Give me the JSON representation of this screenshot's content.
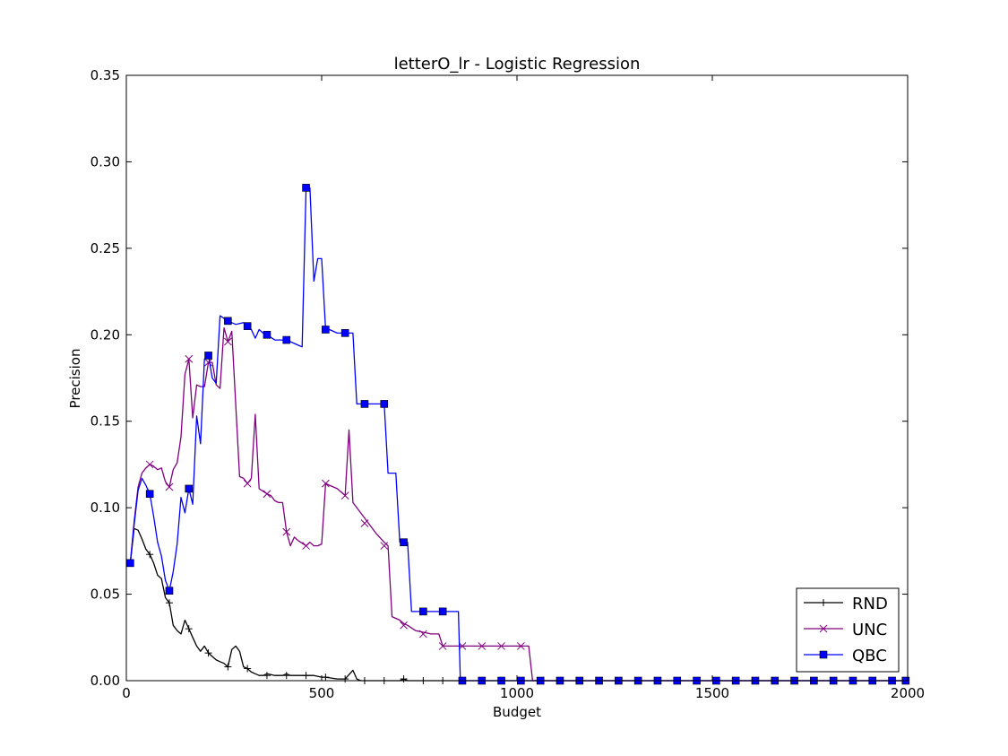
{
  "chart_data": {
    "type": "line",
    "title": "letterO_lr - Logistic Regression",
    "xlabel": "Budget",
    "ylabel": "Precision",
    "xlim": [
      0,
      2000
    ],
    "ylim": [
      0,
      0.35
    ],
    "xticks": [
      0,
      500,
      1000,
      1500,
      2000
    ],
    "xtick_labels": [
      "0",
      "500",
      "1000",
      "1500",
      "2000"
    ],
    "yticks": [
      0,
      0.05,
      0.1,
      0.15,
      0.2,
      0.25,
      0.3,
      0.35
    ],
    "ytick_labels": [
      "0.00",
      "0.05",
      "0.10",
      "0.15",
      "0.20",
      "0.25",
      "0.30",
      "0.35"
    ],
    "grid": false,
    "legend": "lower-right",
    "series": [
      {
        "name": "RND",
        "color": "#000000",
        "marker": "plus",
        "x": [
          10,
          20,
          30,
          40,
          50,
          60,
          70,
          80,
          90,
          100,
          110,
          120,
          130,
          140,
          150,
          160,
          170,
          180,
          190,
          200,
          210,
          220,
          230,
          240,
          250,
          260,
          270,
          280,
          290,
          300,
          310,
          320,
          330,
          340,
          350,
          360,
          380,
          400,
          410,
          420,
          440,
          460,
          480,
          500,
          510,
          540,
          560,
          580,
          590,
          600,
          650,
          700,
          710,
          720,
          800,
          900,
          1000,
          1100,
          1200,
          1300,
          1400,
          1500,
          1600,
          1700,
          1800,
          1900,
          2000
        ],
        "y": [
          0.068,
          0.088,
          0.087,
          0.082,
          0.076,
          0.073,
          0.068,
          0.061,
          0.059,
          0.048,
          0.045,
          0.032,
          0.029,
          0.027,
          0.035,
          0.03,
          0.025,
          0.02,
          0.017,
          0.02,
          0.016,
          0.014,
          0.012,
          0.011,
          0.01,
          0.008,
          0.018,
          0.02,
          0.017,
          0.008,
          0.007,
          0.005,
          0.004,
          0.003,
          0.003,
          0.004,
          0.003,
          0.003,
          0.004,
          0.003,
          0.003,
          0.003,
          0.003,
          0.002,
          0.002,
          0.001,
          0.001,
          0.006,
          0.001,
          0.0,
          0.0,
          0.0,
          0.001,
          0.0,
          0.0,
          0.0,
          0.0,
          0.0,
          0.0,
          0.0,
          0.0,
          0.0,
          0.0,
          0.0,
          0.0,
          0.0,
          0.0
        ],
        "marker_x": [
          60,
          110,
          160,
          210,
          260,
          310,
          360,
          410,
          460,
          510,
          560,
          610,
          660,
          710,
          760,
          810,
          860,
          910,
          960,
          1010,
          1060,
          1110,
          1160,
          1210,
          1260,
          1310,
          1360,
          1410,
          1460,
          1510,
          1560,
          1610,
          1660,
          1710,
          1760,
          1810,
          1860,
          1910,
          1960
        ],
        "marker_y": [
          0.073,
          0.045,
          0.03,
          0.016,
          0.008,
          0.007,
          0.003,
          0.003,
          0.003,
          0.002,
          0.001,
          0.0,
          0.0,
          0.001,
          0.0,
          0.0,
          0.0,
          0.0,
          0.0,
          0.0,
          0.0,
          0.0,
          0.0,
          0.0,
          0.0,
          0.0,
          0.0,
          0.0,
          0.0,
          0.0,
          0.0,
          0.0,
          0.0,
          0.0,
          0.0,
          0.0,
          0.0,
          0.0,
          0.0
        ]
      },
      {
        "name": "UNC",
        "color": "#800080",
        "marker": "x",
        "x": [
          10,
          20,
          30,
          40,
          50,
          60,
          70,
          80,
          90,
          100,
          110,
          120,
          130,
          140,
          150,
          160,
          170,
          180,
          190,
          200,
          210,
          220,
          230,
          240,
          250,
          260,
          270,
          290,
          300,
          310,
          320,
          330,
          340,
          360,
          370,
          380,
          390,
          400,
          410,
          420,
          430,
          440,
          460,
          470,
          480,
          490,
          500,
          510,
          520,
          540,
          560,
          570,
          580,
          600,
          620,
          640,
          660,
          670,
          680,
          700,
          710,
          720,
          740,
          760,
          780,
          800,
          810,
          850,
          900,
          950,
          1000,
          1030,
          1040,
          1050,
          1100,
          1200,
          1300,
          1400,
          1500,
          1600,
          1700,
          1800,
          1900,
          2000
        ],
        "y": [
          0.068,
          0.092,
          0.112,
          0.12,
          0.123,
          0.125,
          0.124,
          0.122,
          0.123,
          0.115,
          0.112,
          0.122,
          0.126,
          0.141,
          0.177,
          0.186,
          0.152,
          0.171,
          0.17,
          0.17,
          0.184,
          0.184,
          0.171,
          0.169,
          0.204,
          0.196,
          0.202,
          0.118,
          0.117,
          0.114,
          0.117,
          0.154,
          0.111,
          0.108,
          0.107,
          0.104,
          0.103,
          0.103,
          0.086,
          0.078,
          0.083,
          0.081,
          0.078,
          0.08,
          0.078,
          0.078,
          0.079,
          0.114,
          0.113,
          0.111,
          0.107,
          0.145,
          0.103,
          0.097,
          0.091,
          0.085,
          0.08,
          0.078,
          0.037,
          0.035,
          0.033,
          0.032,
          0.029,
          0.028,
          0.027,
          0.027,
          0.02,
          0.02,
          0.02,
          0.02,
          0.02,
          0.02,
          0.0,
          0.0,
          0.0,
          0.0,
          0.0,
          0.0,
          0.0,
          0.0,
          0.0,
          0.0,
          0.0,
          0.0
        ],
        "marker_x": [
          60,
          110,
          160,
          210,
          260,
          310,
          360,
          410,
          460,
          510,
          560,
          610,
          660,
          710,
          760,
          810,
          860,
          910,
          960,
          1010,
          1060,
          1110,
          1160,
          1210,
          1260,
          1310,
          1360,
          1410,
          1460,
          1510,
          1560,
          1610,
          1660,
          1710,
          1760,
          1810,
          1860,
          1910,
          1960
        ],
        "marker_y": [
          0.125,
          0.112,
          0.186,
          0.184,
          0.196,
          0.114,
          0.108,
          0.086,
          0.078,
          0.114,
          0.107,
          0.091,
          0.078,
          0.032,
          0.027,
          0.02,
          0.02,
          0.02,
          0.02,
          0.02,
          0.0,
          0.0,
          0.0,
          0.0,
          0.0,
          0.0,
          0.0,
          0.0,
          0.0,
          0.0,
          0.0,
          0.0,
          0.0,
          0.0,
          0.0,
          0.0,
          0.0,
          0.0,
          0.0
        ]
      },
      {
        "name": "QBC",
        "color": "#0000ff",
        "marker": "square",
        "x": [
          10,
          20,
          30,
          40,
          50,
          60,
          70,
          80,
          90,
          100,
          110,
          120,
          130,
          140,
          150,
          160,
          170,
          180,
          190,
          200,
          210,
          220,
          230,
          240,
          260,
          270,
          280,
          300,
          310,
          320,
          330,
          340,
          350,
          360,
          380,
          400,
          410,
          420,
          440,
          450,
          460,
          470,
          480,
          490,
          500,
          510,
          520,
          540,
          550,
          560,
          570,
          580,
          590,
          600,
          610,
          620,
          640,
          660,
          670,
          680,
          690,
          700,
          710,
          720,
          730,
          740,
          760,
          800,
          810,
          850,
          855,
          860,
          900,
          950,
          1000,
          1050,
          1100,
          1200,
          1300,
          1400,
          1500,
          1600,
          1700,
          1800,
          1900,
          2000
        ],
        "y": [
          0.068,
          0.09,
          0.11,
          0.117,
          0.113,
          0.108,
          0.095,
          0.08,
          0.072,
          0.058,
          0.052,
          0.063,
          0.079,
          0.106,
          0.097,
          0.111,
          0.102,
          0.153,
          0.137,
          0.186,
          0.188,
          0.175,
          0.172,
          0.211,
          0.208,
          0.207,
          0.206,
          0.207,
          0.205,
          0.203,
          0.198,
          0.203,
          0.201,
          0.2,
          0.197,
          0.197,
          0.196,
          0.196,
          0.194,
          0.193,
          0.285,
          0.285,
          0.231,
          0.244,
          0.244,
          0.203,
          0.203,
          0.201,
          0.201,
          0.201,
          0.201,
          0.201,
          0.16,
          0.16,
          0.16,
          0.16,
          0.16,
          0.16,
          0.12,
          0.12,
          0.12,
          0.08,
          0.08,
          0.08,
          0.04,
          0.04,
          0.04,
          0.04,
          0.04,
          0.04,
          0.0,
          0.0,
          0.0,
          0.0,
          0.0,
          0.0,
          0.0,
          0.0,
          0.0,
          0.0,
          0.0,
          0.0,
          0.0,
          0.0,
          0.0,
          0.0
        ],
        "marker_x": [
          10,
          60,
          110,
          160,
          210,
          260,
          310,
          360,
          410,
          460,
          510,
          560,
          610,
          660,
          710,
          760,
          810,
          860,
          910,
          960,
          1010,
          1060,
          1110,
          1160,
          1210,
          1260,
          1310,
          1360,
          1410,
          1460,
          1510,
          1560,
          1610,
          1660,
          1710,
          1760,
          1810,
          1860,
          1910,
          1960,
          1995
        ],
        "marker_y": [
          0.068,
          0.108,
          0.052,
          0.111,
          0.188,
          0.208,
          0.205,
          0.2,
          0.197,
          0.285,
          0.203,
          0.201,
          0.16,
          0.16,
          0.08,
          0.04,
          0.04,
          0.0,
          0.0,
          0.0,
          0.0,
          0.0,
          0.0,
          0.0,
          0.0,
          0.0,
          0.0,
          0.0,
          0.0,
          0.0,
          0.0,
          0.0,
          0.0,
          0.0,
          0.0,
          0.0,
          0.0,
          0.0,
          0.0,
          0.0,
          0.0
        ]
      }
    ]
  }
}
